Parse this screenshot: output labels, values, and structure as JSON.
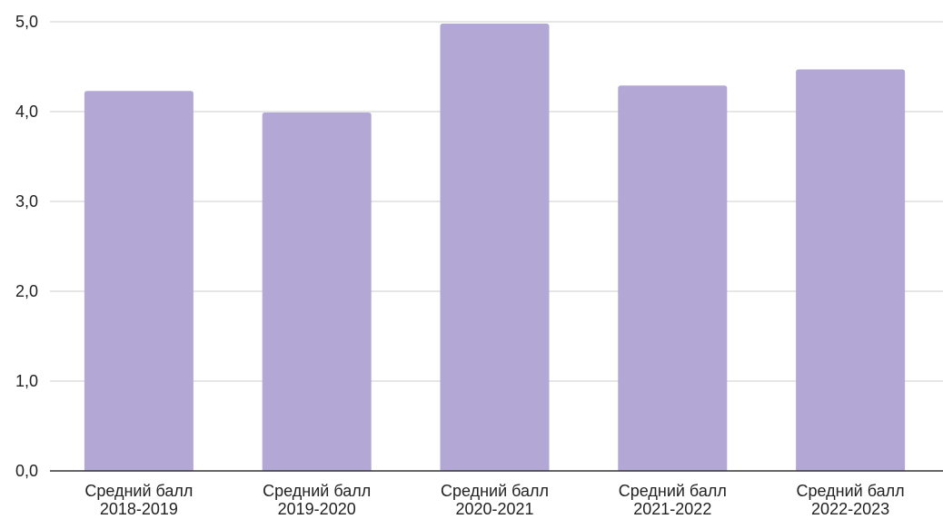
{
  "chart_data": {
    "type": "bar",
    "categories": [
      [
        "Средний балл",
        "2018-2019"
      ],
      [
        "Средний балл",
        "2019-2020"
      ],
      [
        "Средний балл",
        "2020-2021"
      ],
      [
        "Средний балл",
        "2021-2022"
      ],
      [
        "Средний балл",
        "2022-2023"
      ]
    ],
    "values": [
      4.23,
      3.99,
      4.98,
      4.29,
      4.47
    ],
    "ylim": [
      0,
      5
    ],
    "yticks": [
      "0,0",
      "1,0",
      "2,0",
      "3,0",
      "4,0",
      "5,0"
    ],
    "grid": true,
    "colors": {
      "bar": "#b3a7d6",
      "grid": "#cccccc",
      "axis": "#333333"
    }
  }
}
